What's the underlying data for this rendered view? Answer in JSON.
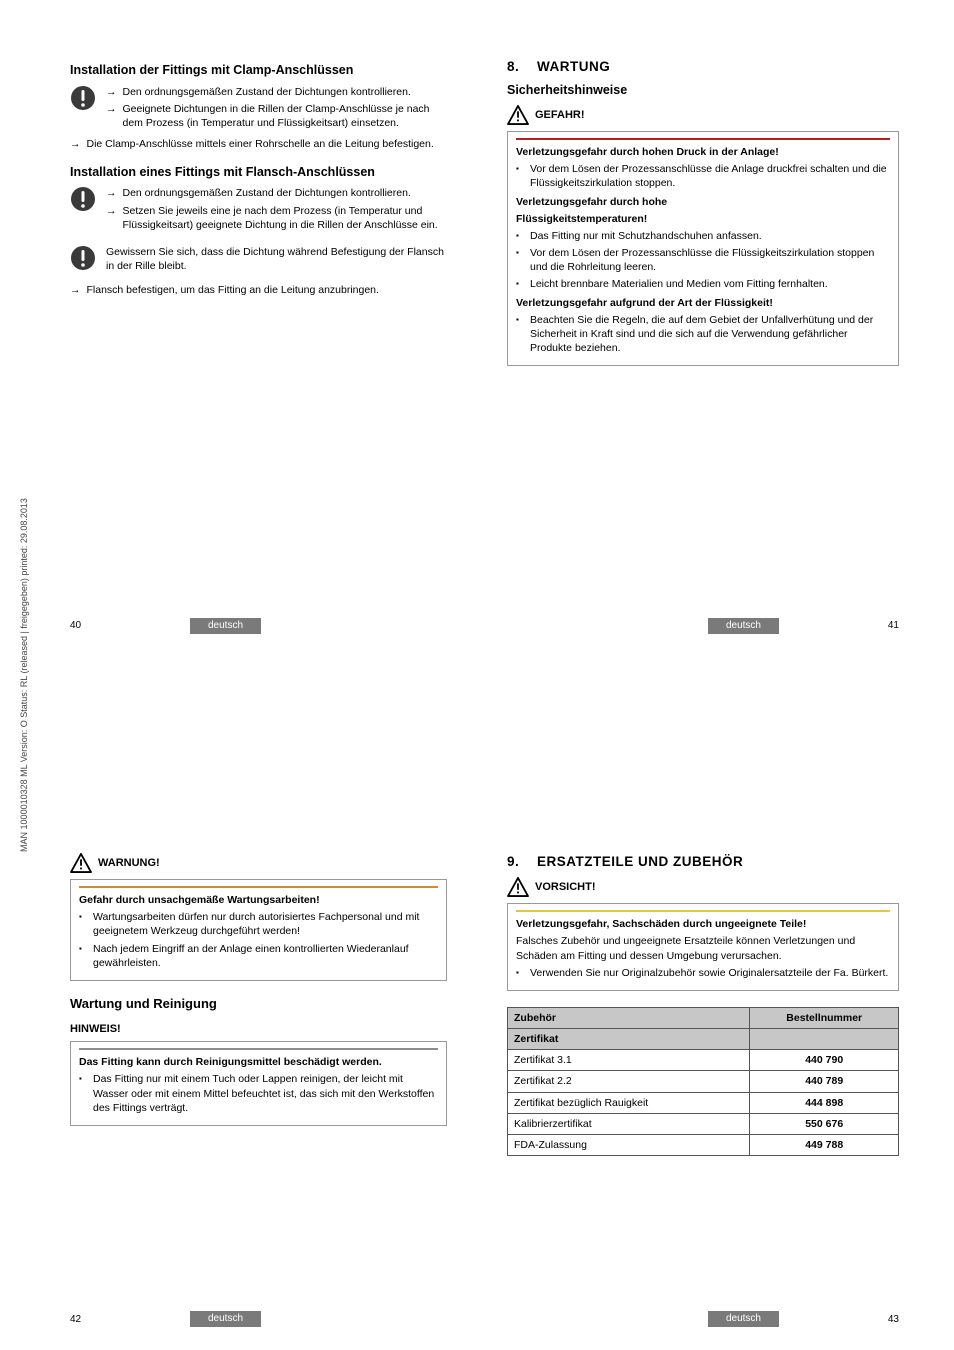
{
  "vertical_label": "MAN 1000010328 ML Version: O Status: RL (released | freigegeben) printed: 29.08.2013",
  "lang_label": "deutsch",
  "p40": {
    "num": "40",
    "h1": "Installation der Fittings mit Clamp-Anschlüssen",
    "a1": "Den ordnungsgemäßen Zustand der Dich­tungen kontrollieren.",
    "a2": "Geeignete Dichtungen in die Rillen der Clamp-Anschlüsse je nach dem Prozess (in Temperatur und Flüssigkeitsart) einsetzen.",
    "a3": "Die Clamp-Anschlüsse mittels einer Rohrschelle an die Leitung befestigen.",
    "h2": "Installation eines Fittings mit Flansch-Anschlüssen",
    "b1": "Den ordnungsgemäßen Zustand der Dich­tungen kontrollieren.",
    "b2": "Setzen Sie jeweils eine je nach dem Prozess (in Temperatur und Flüssigkeitsart) geeignete Dichtung in die Rillen der Anschlüsse ein.",
    "c1": "Gewissern Sie sich, dass die Dichtung während Befestigung der Flansch in der Rille bleibt.",
    "a4": "Flansch befestigen, um das Fitting an die Leitung anzubringen."
  },
  "p41": {
    "num": "41",
    "chapter_num": "8.",
    "chapter": "WARTUNG",
    "sub": "Sicherheitshinweise",
    "danger_title": "GEFAHR!",
    "s1": "Verletzungsgefahr durch hohen Druck in der Anlage!",
    "s1_b1": "Vor dem Lösen der Prozessanschlüsse die Anlage druckfrei schalten und die Flüssigkeitszirkulation stoppen.",
    "s2a": "Verletzungsgefahr durch hohe",
    "s2b": "Flüssigkeitstemperaturen!",
    "s2_b1": "Das Fitting nur mit Schutzhandschuhen anfassen.",
    "s2_b2": "Vor dem Lösen der Prozessanschlüsse die Flüssig­keitszirkulation stoppen und die Rohrleitung leeren.",
    "s2_b3": "Leicht brennbare Materialien und Medien vom Fitting fernhalten.",
    "s3": "Verletzungsgefahr aufgrund der Art der Flüssigkeit!",
    "s3_b1": "Beachten Sie die Regeln, die auf dem Gebiet der Unfallverhütung und der Sicherheit in Kraft sind und die sich auf die Verwendung gefährlicher Produkte beziehen."
  },
  "p42": {
    "num": "42",
    "warn_title": "WARNUNG!",
    "w1": "Gefahr durch unsachgemäße Wartungsarbeiten!",
    "w1_b1": "Wartungsarbeiten dürfen nur durch autorisiertes Fach­personal und mit geeignetem Werkzeug durchgeführt werden!",
    "w1_b2": "Nach jedem Eingriff an der Anlage einen kontrollierten Wiederanlauf gewährleisten.",
    "h1": "Wartung und Reinigung",
    "note_title": "HINWEIS!",
    "n1": "Das Fitting kann durch Reinigungsmittel beschädigt werden.",
    "n1_b1": "Das Fitting nur mit einem Tuch oder Lappen reinigen, der leicht mit Wasser oder mit einem Mittel befeuchtet ist, das sich mit den Werkstoffen des Fittings verträgt."
  },
  "p43": {
    "num": "43",
    "chapter_num": "9.",
    "chapter": "ERSATZTEILE UND ZUBEHÖR",
    "caution_title": "VORSICHT!",
    "c1": "Verletzungsgefahr, Sachschäden durch ungeeignete Teile!",
    "c1_p": "Falsches Zubehör und ungeeignete Ersatzteile können Verletzungen und Schäden am Fitting und dessen Umgebung verursachen.",
    "c1_b1": "Verwenden Sie nur Originalzubehör sowie Originaler­satzteile der Fa. Bürkert.",
    "th1": "Zubehör",
    "th2": "Bestellnummer",
    "subhead": "Zertifikat",
    "rows": [
      {
        "name": "Zertifikat 3.1",
        "num": "440 790"
      },
      {
        "name": "Zertifikat 2.2",
        "num": "440 789"
      },
      {
        "name": "Zertifikat bezüglich Rauigkeit",
        "num": "444 898"
      },
      {
        "name": "Kalibrierzertifikat",
        "num": "550 676"
      },
      {
        "name": "FDA-Zulassung",
        "num": "449 788"
      }
    ]
  }
}
